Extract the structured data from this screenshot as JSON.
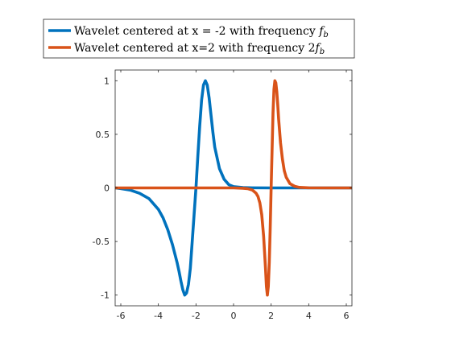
{
  "chart_data": {
    "type": "line",
    "xlim": [
      -6.3,
      6.3
    ],
    "ylim": [
      -1.1,
      1.1
    ],
    "x_ticks": [
      -6,
      -4,
      -2,
      0,
      2,
      4,
      6
    ],
    "x_tick_labels": [
      "-6",
      "-4",
      "-2",
      "0",
      "2",
      "4",
      "6"
    ],
    "y_ticks": [
      -1,
      -0.5,
      0,
      0.5,
      1
    ],
    "y_tick_labels": [
      "-1",
      "-0.5",
      "0",
      "0.5",
      "1"
    ],
    "grid": false,
    "box": true,
    "legend_position": "top, outside plot",
    "series": [
      {
        "name": "Wavelet centered at x = -2 with frequency f_b",
        "legend_prefix": "Wavelet centered at x = -2 with frequency ",
        "legend_math": "f",
        "legend_sub": "b",
        "color": "#0072BD",
        "center": -2,
        "frequency": "f_b",
        "x": [
          -6.3,
          -6,
          -5.5,
          -5,
          -4.5,
          -4,
          -3.75,
          -3.5,
          -3.25,
          -3,
          -2.9,
          -2.8,
          -2.7,
          -2.6,
          -2.5,
          -2.4,
          -2.3,
          -2.2,
          -2.1,
          -2,
          -1.9,
          -1.8,
          -1.7,
          -1.6,
          -1.5,
          -1.4,
          -1.3,
          -1.2,
          -1.1,
          -1,
          -0.75,
          -0.5,
          -0.25,
          0,
          0.5,
          1,
          2,
          3,
          4,
          5,
          6.3
        ],
        "y": [
          0,
          -0.006,
          -0.02,
          -0.05,
          -0.1,
          -0.2,
          -0.28,
          -0.39,
          -0.53,
          -0.7,
          -0.78,
          -0.87,
          -0.95,
          -1.0,
          -0.98,
          -0.9,
          -0.75,
          -0.5,
          -0.25,
          0,
          0.3,
          0.58,
          0.82,
          0.96,
          1.0,
          0.96,
          0.84,
          0.68,
          0.52,
          0.38,
          0.18,
          0.08,
          0.03,
          0.012,
          0.003,
          0.001,
          0,
          0,
          0,
          0,
          0
        ]
      },
      {
        "name": "Wavelet centered at x=2 with frequency 2f_b",
        "legend_prefix": "Wavelet centered at x=2 with frequency 2",
        "legend_math": "f",
        "legend_sub": "b",
        "color": "#D95319",
        "center": 2,
        "frequency": "2f_b",
        "x": [
          -6.3,
          -2,
          -1,
          0,
          0.5,
          0.75,
          1,
          1.2,
          1.3,
          1.4,
          1.5,
          1.6,
          1.7,
          1.75,
          1.8,
          1.85,
          1.9,
          1.95,
          2,
          2.05,
          2.1,
          2.15,
          2.2,
          2.25,
          2.3,
          2.35,
          2.4,
          2.5,
          2.6,
          2.7,
          2.8,
          3,
          3.25,
          3.5,
          4,
          5,
          6.3
        ],
        "y": [
          0,
          0,
          0,
          0,
          -0.003,
          -0.007,
          -0.02,
          -0.05,
          -0.08,
          -0.14,
          -0.25,
          -0.45,
          -0.75,
          -0.92,
          -1.0,
          -0.92,
          -0.7,
          -0.38,
          0,
          0.35,
          0.7,
          0.92,
          1.0,
          0.98,
          0.9,
          0.78,
          0.64,
          0.42,
          0.27,
          0.16,
          0.1,
          0.04,
          0.015,
          0.005,
          0.001,
          0,
          0
        ]
      }
    ]
  }
}
